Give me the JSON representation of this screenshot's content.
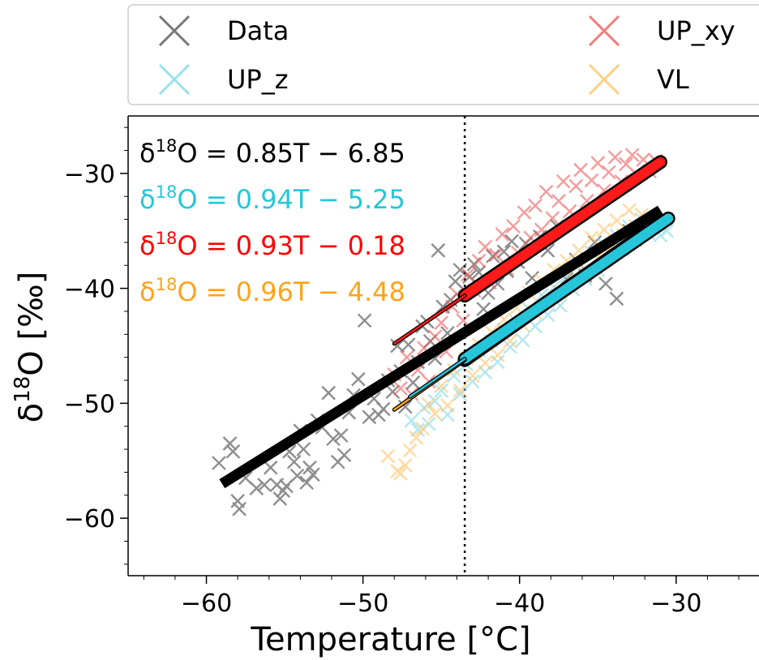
{
  "chart_data": {
    "type": "scatter",
    "xlabel": "Temperature [°C]",
    "ylabel": "δ18O [‰]",
    "xlim": [
      -65,
      -24.5
    ],
    "ylim": [
      -65,
      -25
    ],
    "xticks": [
      -60,
      -50,
      -40,
      -30
    ],
    "yticks": [
      -60,
      -50,
      -40,
      -30
    ],
    "xtick_labels": [
      "−60",
      "−50",
      "−40",
      "−30"
    ],
    "ytick_labels": [
      "−60",
      "−50",
      "−40",
      "−30"
    ],
    "vline_x": -43.5,
    "legend": {
      "placement": "top, above plot",
      "entries": [
        {
          "label": "Data",
          "color": "#555555"
        },
        {
          "label": "UP_xy",
          "color": "#f05a5a"
        },
        {
          "label": "UP_z",
          "color": "#7fd8e8"
        },
        {
          "label": "VL",
          "color": "#ffc266"
        }
      ]
    },
    "equations": [
      {
        "text": "δ18O = 0.85T − 6.85",
        "color": "#000000"
      },
      {
        "text": "δ18O = 0.94T − 5.25",
        "color": "#26c6da"
      },
      {
        "text": "δ18O = 0.93T − 0.18",
        "color": "#ff0000"
      },
      {
        "text": "δ18O = 0.96T − 4.48",
        "color": "#ffa31a"
      }
    ],
    "series": [
      {
        "name": "Data",
        "marker": "x",
        "color": "#333333",
        "points": [
          [
            -59.2,
            -55.2
          ],
          [
            -58.5,
            -53.5
          ],
          [
            -58.3,
            -54.2
          ],
          [
            -58.0,
            -58.5
          ],
          [
            -57.9,
            -59.2
          ],
          [
            -57.5,
            -56.5
          ],
          [
            -56.8,
            -57.4
          ],
          [
            -56.3,
            -57.1
          ],
          [
            -55.9,
            -55.6
          ],
          [
            -55.5,
            -57.1
          ],
          [
            -55.3,
            -58.3
          ],
          [
            -55.1,
            -57.6
          ],
          [
            -54.9,
            -57.2
          ],
          [
            -54.7,
            -54.2
          ],
          [
            -54.4,
            -55.1
          ],
          [
            -54.2,
            -56.3
          ],
          [
            -54.0,
            -52.4
          ],
          [
            -53.8,
            -54.0
          ],
          [
            -53.6,
            -56.9
          ],
          [
            -53.4,
            -55.6
          ],
          [
            -53.2,
            -56.2
          ],
          [
            -52.9,
            -51.5
          ],
          [
            -52.6,
            -52.1
          ],
          [
            -52.2,
            -49.1
          ],
          [
            -51.9,
            -53.1
          ],
          [
            -51.6,
            -55.1
          ],
          [
            -51.4,
            -52.8
          ],
          [
            -51.2,
            -54.5
          ],
          [
            -50.9,
            -50.8
          ],
          [
            -50.6,
            -49.3
          ],
          [
            -50.3,
            -47.9
          ],
          [
            -49.9,
            -42.8
          ],
          [
            -49.6,
            -51.2
          ],
          [
            -49.3,
            -49.6
          ],
          [
            -49.0,
            -51.0
          ],
          [
            -48.7,
            -50.5
          ],
          [
            -48.4,
            -48.0
          ],
          [
            -48.1,
            -49.0
          ],
          [
            -47.8,
            -45.0
          ],
          [
            -47.6,
            -47.2
          ],
          [
            -47.3,
            -50.3
          ],
          [
            -47.1,
            -44.9
          ],
          [
            -46.8,
            -48.2
          ],
          [
            -46.5,
            -46.4
          ],
          [
            -46.2,
            -43.3
          ],
          [
            -45.9,
            -42.9
          ],
          [
            -45.7,
            -44.6
          ],
          [
            -45.4,
            -46.1
          ],
          [
            -45.2,
            -36.7
          ],
          [
            -44.9,
            -41.6
          ],
          [
            -44.6,
            -43.9
          ],
          [
            -44.4,
            -41.0
          ],
          [
            -44.1,
            -39.4
          ],
          [
            -43.8,
            -38.4
          ],
          [
            -43.5,
            -40.2
          ],
          [
            -43.2,
            -39.0
          ],
          [
            -42.9,
            -37.9
          ],
          [
            -42.6,
            -38.6
          ],
          [
            -42.3,
            -41.8
          ],
          [
            -42.0,
            -40.4
          ],
          [
            -41.7,
            -37.2
          ],
          [
            -41.4,
            -39.6
          ],
          [
            -41.0,
            -36.8
          ],
          [
            -40.8,
            -38.5
          ],
          [
            -40.5,
            -35.9
          ],
          [
            -40.1,
            -37.7
          ],
          [
            -39.6,
            -36.1
          ],
          [
            -39.2,
            -39.1
          ],
          [
            -38.7,
            -35.5
          ],
          [
            -38.2,
            -36.7
          ],
          [
            -37.6,
            -34.6
          ],
          [
            -37.0,
            -39.2
          ],
          [
            -36.4,
            -37.5
          ],
          [
            -35.8,
            -38.9
          ],
          [
            -35.2,
            -36.0
          ],
          [
            -34.5,
            -39.6
          ],
          [
            -33.8,
            -40.9
          ],
          [
            -33.0,
            -35.0
          ]
        ]
      },
      {
        "name": "UP_xy",
        "marker": "x",
        "color": "#f05a5a",
        "points": [
          [
            -48.0,
            -47.5
          ],
          [
            -47.6,
            -48.7
          ],
          [
            -47.2,
            -46.0
          ],
          [
            -46.9,
            -49.2
          ],
          [
            -46.5,
            -47.1
          ],
          [
            -46.1,
            -45.2
          ],
          [
            -45.8,
            -48.1
          ],
          [
            -45.4,
            -44.2
          ],
          [
            -45.0,
            -43.0
          ],
          [
            -44.7,
            -45.5
          ],
          [
            -44.3,
            -41.6
          ],
          [
            -44.0,
            -40.5
          ],
          [
            -43.6,
            -42.8
          ],
          [
            -43.3,
            -38.8
          ],
          [
            -42.9,
            -40.2
          ],
          [
            -42.6,
            -37.6
          ],
          [
            -42.2,
            -36.4
          ],
          [
            -41.9,
            -39.5
          ],
          [
            -41.5,
            -37.1
          ],
          [
            -41.1,
            -35.3
          ],
          [
            -40.8,
            -38.3
          ],
          [
            -40.4,
            -34.6
          ],
          [
            -40.1,
            -36.9
          ],
          [
            -39.7,
            -33.4
          ],
          [
            -39.3,
            -35.6
          ],
          [
            -39.0,
            -32.8
          ],
          [
            -38.6,
            -34.9
          ],
          [
            -38.3,
            -31.6
          ],
          [
            -37.9,
            -33.9
          ],
          [
            -37.5,
            -32.4
          ],
          [
            -37.2,
            -30.7
          ],
          [
            -36.8,
            -33.3
          ],
          [
            -36.4,
            -31.1
          ],
          [
            -36.1,
            -29.7
          ],
          [
            -35.7,
            -32.4
          ],
          [
            -35.4,
            -30.6
          ],
          [
            -35.0,
            -29.1
          ],
          [
            -34.6,
            -31.5
          ],
          [
            -34.3,
            -29.9
          ],
          [
            -33.9,
            -28.6
          ],
          [
            -33.5,
            -30.7
          ],
          [
            -33.2,
            -29.2
          ],
          [
            -32.8,
            -28.4
          ],
          [
            -32.5,
            -30.1
          ],
          [
            -32.1,
            -28.8
          ],
          [
            -31.7,
            -29.8
          ],
          [
            -31.3,
            -28.9
          ]
        ]
      },
      {
        "name": "UP_z",
        "marker": "x",
        "color": "#7fd8e8",
        "points": [
          [
            -46.9,
            -51.5
          ],
          [
            -46.5,
            -52.3
          ],
          [
            -46.1,
            -50.4
          ],
          [
            -45.8,
            -51.8
          ],
          [
            -45.4,
            -49.8
          ],
          [
            -45.0,
            -48.9
          ],
          [
            -44.6,
            -51.0
          ],
          [
            -44.2,
            -47.6
          ],
          [
            -43.8,
            -49.2
          ],
          [
            -43.4,
            -46.6
          ],
          [
            -43.0,
            -48.1
          ],
          [
            -42.6,
            -45.4
          ],
          [
            -42.2,
            -47.3
          ],
          [
            -41.8,
            -44.6
          ],
          [
            -41.4,
            -46.4
          ],
          [
            -41.0,
            -43.6
          ],
          [
            -40.6,
            -45.1
          ],
          [
            -40.2,
            -42.9
          ],
          [
            -39.8,
            -44.5
          ],
          [
            -39.4,
            -41.8
          ],
          [
            -39.0,
            -43.3
          ],
          [
            -38.6,
            -40.6
          ],
          [
            -38.2,
            -42.3
          ],
          [
            -37.8,
            -39.9
          ],
          [
            -37.4,
            -41.5
          ],
          [
            -37.0,
            -38.9
          ],
          [
            -36.6,
            -40.1
          ],
          [
            -36.2,
            -37.9
          ],
          [
            -35.8,
            -39.2
          ],
          [
            -35.4,
            -36.9
          ],
          [
            -35.0,
            -38.4
          ],
          [
            -34.6,
            -36.2
          ],
          [
            -34.2,
            -37.1
          ],
          [
            -33.8,
            -35.4
          ],
          [
            -33.4,
            -36.6
          ],
          [
            -33.0,
            -34.6
          ],
          [
            -32.6,
            -35.8
          ],
          [
            -32.2,
            -34.0
          ],
          [
            -31.8,
            -35.2
          ],
          [
            -31.4,
            -34.1
          ],
          [
            -31.0,
            -35.4
          ],
          [
            -30.6,
            -35.0
          ]
        ]
      },
      {
        "name": "VL",
        "marker": "x",
        "color": "#ffc266",
        "points": [
          [
            -48.4,
            -54.6
          ],
          [
            -47.8,
            -55.9
          ],
          [
            -47.6,
            -56.1
          ],
          [
            -47.3,
            -55.4
          ],
          [
            -47.0,
            -54.1
          ],
          [
            -46.6,
            -53.0
          ],
          [
            -46.2,
            -52.2
          ],
          [
            -45.8,
            -50.1
          ],
          [
            -45.4,
            -50.9
          ],
          [
            -45.0,
            -48.5
          ],
          [
            -44.6,
            -50.2
          ],
          [
            -44.2,
            -47.1
          ],
          [
            -43.8,
            -48.9
          ],
          [
            -43.4,
            -46.1
          ],
          [
            -43.0,
            -47.6
          ],
          [
            -42.6,
            -44.9
          ],
          [
            -42.2,
            -46.5
          ],
          [
            -41.8,
            -43.8
          ],
          [
            -41.4,
            -45.8
          ],
          [
            -41.0,
            -42.7
          ],
          [
            -40.6,
            -44.6
          ],
          [
            -40.2,
            -41.7
          ],
          [
            -39.8,
            -43.2
          ],
          [
            -39.4,
            -40.4
          ],
          [
            -39.0,
            -42.1
          ],
          [
            -38.6,
            -39.3
          ],
          [
            -38.2,
            -41.1
          ],
          [
            -37.8,
            -38.4
          ],
          [
            -37.4,
            -40.3
          ],
          [
            -37.0,
            -37.6
          ],
          [
            -36.6,
            -39.1
          ],
          [
            -36.2,
            -36.7
          ],
          [
            -35.8,
            -38.4
          ],
          [
            -35.4,
            -35.6
          ],
          [
            -35.0,
            -37.3
          ],
          [
            -34.6,
            -34.9
          ],
          [
            -34.2,
            -36.5
          ],
          [
            -33.8,
            -34.1
          ],
          [
            -33.4,
            -35.4
          ],
          [
            -33.0,
            -33.2
          ],
          [
            -32.6,
            -34.6
          ],
          [
            -32.2,
            -33.6
          ]
        ]
      }
    ],
    "fits": [
      {
        "name": "Data",
        "slope": 0.85,
        "intercept": -6.85,
        "x_range": [
          -59,
          -43.5
        ],
        "color": "#000000",
        "style": "thick-line"
      },
      {
        "name": "Data",
        "slope": 0.85,
        "intercept": -6.85,
        "x_range": [
          -43.5,
          -31
        ],
        "color": "#000000",
        "style": "thick-line"
      },
      {
        "name": "VL",
        "slope": 0.96,
        "intercept": -4.48,
        "x_range": [
          -43.5,
          -32
        ],
        "color": "#ffa31a",
        "style": "band"
      },
      {
        "name": "UP_z",
        "slope": 0.94,
        "intercept": -5.25,
        "x_range": [
          -43.5,
          -30.5
        ],
        "color": "#26c6da",
        "style": "band"
      },
      {
        "name": "UP_xy",
        "slope": 0.93,
        "intercept": -0.18,
        "x_range": [
          -43.5,
          -31
        ],
        "color": "#ff1a1a",
        "style": "band"
      },
      {
        "name": "VL",
        "slope": 0.96,
        "intercept": -4.48,
        "x_range": [
          -48.0,
          -43.5
        ],
        "color": "#ffa31a",
        "style": "thin"
      },
      {
        "name": "UP_z",
        "slope": 0.94,
        "intercept": -5.25,
        "x_range": [
          -47.0,
          -43.5
        ],
        "color": "#26c6da",
        "style": "thin"
      },
      {
        "name": "UP_xy",
        "slope": 0.93,
        "intercept": -0.18,
        "x_range": [
          -48.0,
          -43.5
        ],
        "color": "#ff1a1a",
        "style": "thin"
      }
    ]
  }
}
